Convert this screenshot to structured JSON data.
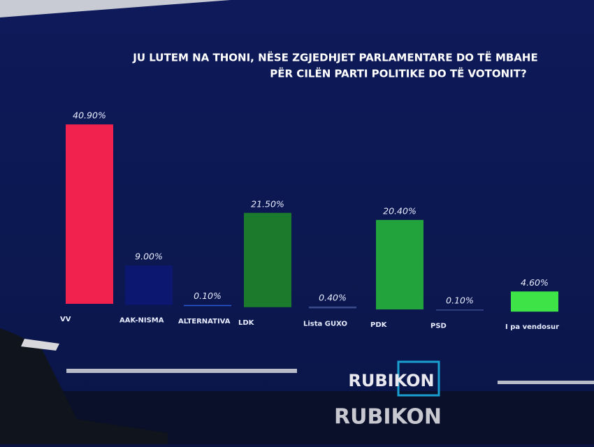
{
  "chart_data": {
    "type": "bar",
    "title_lines": [
      "JU LUTEM NA THONI, NËSE ZGJEDHJET PARLAMENTARE DO TË MBAHE",
      "PËR CILËN PARTI POLITIKE DO TË VOTONIT?"
    ],
    "categories": [
      "VV",
      "AAK-NISMA",
      "ALTERNATIVA",
      "LDK",
      "Lista GUXO",
      "PDK",
      "PSD",
      "I pa vendosur"
    ],
    "values": [
      40.9,
      9.0,
      0.1,
      21.5,
      0.4,
      20.4,
      0.1,
      4.6
    ],
    "value_labels": [
      "40.90%",
      "9.00%",
      "0.10%",
      "21.50%",
      "0.40%",
      "20.40%",
      "0.10%",
      "4.60%"
    ],
    "colors": [
      "#f2224e",
      "#0c1870",
      "#2a5ad8",
      "#1c7a2c",
      "#3a4a8a",
      "#22a33c",
      "#3a4a8a",
      "#3ee447"
    ]
  },
  "logo": "RUBIKON",
  "watermark": "RUBIKON"
}
